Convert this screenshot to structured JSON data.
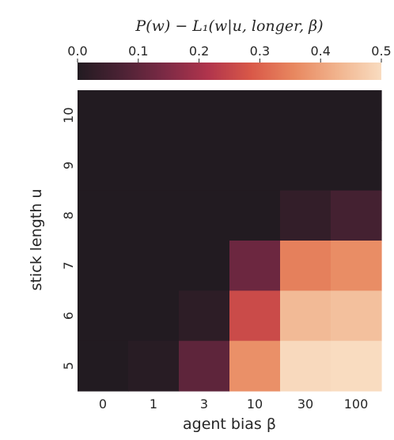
{
  "chart_data": {
    "type": "heatmap",
    "title": "",
    "xlabel": "agent bias β",
    "ylabel": "stick length u",
    "colorbar_label": "P(w) − L₁(w|u, longer, β)",
    "colorbar_ticks": [
      0.0,
      0.1,
      0.2,
      0.3,
      0.4,
      0.5
    ],
    "colorbar_tick_labels": [
      "0.0",
      "0.1",
      "0.2",
      "0.3",
      "0.4",
      "0.5"
    ],
    "colorbar_range": [
      0.0,
      0.5
    ],
    "colorbar_position": "top",
    "colormap": "rocket-like",
    "colormap_stops": [
      "#221b21",
      "#4b2234",
      "#7b2a45",
      "#b0344c",
      "#d95848",
      "#e88860",
      "#f1b48e",
      "#f9dcc0"
    ],
    "x_categories": [
      "0",
      "1",
      "3",
      "10",
      "30",
      "100"
    ],
    "y_categories": [
      "10",
      "9",
      "8",
      "7",
      "6",
      "5"
    ],
    "values": [
      [
        0.0,
        0.0,
        0.0,
        0.0,
        0.0,
        0.0
      ],
      [
        0.0,
        0.0,
        0.0,
        0.0,
        0.0,
        0.0
      ],
      [
        0.0,
        0.0,
        0.0,
        0.0,
        0.03,
        0.06
      ],
      [
        0.0,
        0.0,
        0.0,
        0.12,
        0.345,
        0.365
      ],
      [
        0.0,
        0.0,
        0.02,
        0.26,
        0.44,
        0.45
      ],
      [
        0.0,
        0.01,
        0.1,
        0.37,
        0.495,
        0.5
      ]
    ],
    "grid": false
  }
}
